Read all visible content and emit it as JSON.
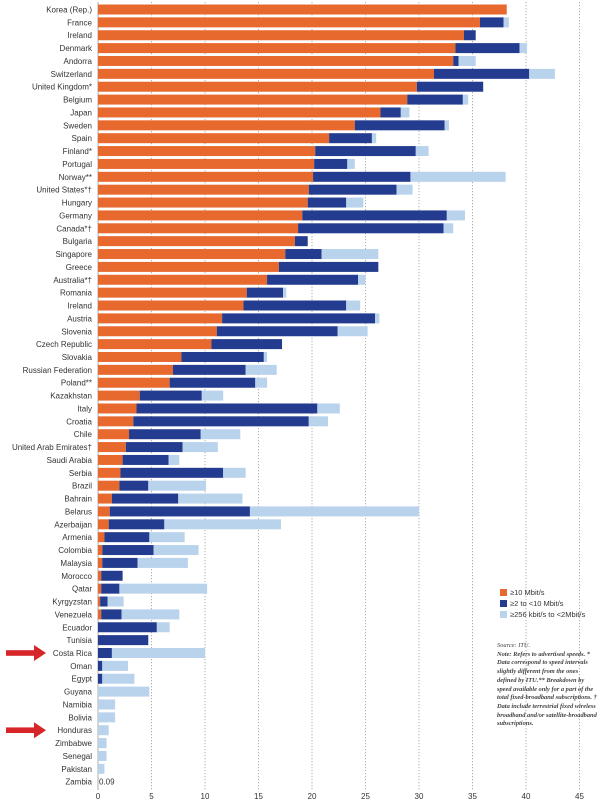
{
  "colors": {
    "high": "#e8692e",
    "mid": "#243c8f",
    "low": "#b9d3ec",
    "grid": "#9a9a9a",
    "arrow": "#d6262a"
  },
  "legend": {
    "items": [
      {
        "label": "≥10 Mbit/s",
        "color": "#e8692e"
      },
      {
        "label": "≥2 to <10 Mbit/s",
        "color": "#243c8f"
      },
      {
        "label": "≥256 kbit/s to <2Mbit/s",
        "color": "#b9d3ec"
      }
    ]
  },
  "note": {
    "source": "Source: ITU.",
    "text": "Note: Refers to advertised speeds. * Data correspond to speed intervals slightly different from the ones defined by ITU.** Breakdown by speed available only for a part of the total fixed-broadband subscriptions. † Data include terrestrial fixed wireless broadband and/or satellite-broadband subscriptions."
  },
  "chart_data": {
    "type": "bar",
    "orientation": "horizontal",
    "stacked": true,
    "xlim": [
      0,
      45
    ],
    "x_ticks": [
      "0",
      "5",
      "10",
      "15",
      "20",
      "25",
      "30",
      "35",
      "40",
      "45"
    ],
    "grid": "vertical dotted",
    "legend_position": "lower-right",
    "annotations": [
      {
        "text": "0.09",
        "category": "Zambia"
      }
    ],
    "highlighted_categories": [
      "Costa Rica",
      "Honduras"
    ],
    "categories": [
      "Korea (Rep.)",
      "France",
      "Ireland",
      "Denmark",
      "Andorra",
      "Switzerland",
      "United Kingdom*",
      "Belgium",
      "Japan",
      "Sweden",
      "Spain",
      "Finland*",
      "Portugal",
      "Norway**",
      "United States*†",
      "Hungary",
      "Germany",
      "Canada*†",
      "Bulgaria",
      "Singapore",
      "Greece",
      "Australia*†",
      "Romania",
      "Ireland",
      "Austria",
      "Slovenia",
      "Czech Republic",
      "Slovakia",
      "Russian Federation",
      "Poland**",
      "Kazakhstan",
      "Italy",
      "Croatia",
      "Chile",
      "United Arab Emirates†",
      "Saudi Arabia",
      "Serbia",
      "Brazil",
      "Bahrain",
      "Belarus",
      "Azerbaijan",
      "Armenia",
      "Colombia",
      "Malaysia",
      "Morocco",
      "Qatar",
      "Kyrgyzstan",
      "Venezuela",
      "Ecuador",
      "Tunisia",
      "Costa Rica",
      "Oman",
      "Egypt",
      "Guyana",
      "Namibia",
      "Bolivia",
      "Honduras",
      "Zimbabwe",
      "Senegal",
      "Pakistan",
      "Zambia"
    ],
    "series": [
      {
        "name": "≥10 Mbit/s",
        "values": [
          38.2,
          35.7,
          34.2,
          33.4,
          33.2,
          31.4,
          29.8,
          28.9,
          26.4,
          24.0,
          21.6,
          20.3,
          20.2,
          20.1,
          19.7,
          19.6,
          19.1,
          18.7,
          18.4,
          17.5,
          16.9,
          15.8,
          13.9,
          13.6,
          11.6,
          11.1,
          10.6,
          7.8,
          7.0,
          6.7,
          3.9,
          3.6,
          3.3,
          2.9,
          2.6,
          2.3,
          2.1,
          2.0,
          1.3,
          1.1,
          1.0,
          0.6,
          0.4,
          0.4,
          0.3,
          0.3,
          0.2,
          0.3,
          0.0,
          0.0,
          0.0,
          0.0,
          0.0,
          0.0,
          0.0,
          0.0,
          0.0,
          0.0,
          0.0,
          0.0,
          0.0
        ]
      },
      {
        "name": "≥2 to <10 Mbit/s",
        "values": [
          0.0,
          2.2,
          1.1,
          6.0,
          0.5,
          8.9,
          6.2,
          5.2,
          1.9,
          8.4,
          4.0,
          9.4,
          3.1,
          9.1,
          8.2,
          3.6,
          13.5,
          13.6,
          1.2,
          3.4,
          9.3,
          8.5,
          3.4,
          9.6,
          14.3,
          11.3,
          6.6,
          7.7,
          6.8,
          8.0,
          5.8,
          16.9,
          16.4,
          6.7,
          5.3,
          4.3,
          9.6,
          2.7,
          6.2,
          13.1,
          5.2,
          4.2,
          4.8,
          3.3,
          2.0,
          1.7,
          0.7,
          1.9,
          5.5,
          4.7,
          1.3,
          0.4,
          0.4,
          0.0,
          0.0,
          0.0,
          0.0,
          0.0,
          0.0,
          0.0,
          0.0
        ]
      },
      {
        "name": "≥256 kbit/s to <2Mbit/s",
        "values": [
          0.0,
          0.5,
          0.0,
          0.7,
          1.6,
          2.4,
          0.0,
          0.5,
          0.8,
          0.4,
          0.4,
          1.2,
          0.7,
          8.9,
          1.5,
          1.6,
          1.7,
          0.9,
          0.0,
          5.3,
          0.0,
          0.7,
          0.3,
          1.3,
          0.4,
          2.8,
          0.0,
          0.3,
          2.9,
          1.1,
          2.0,
          2.1,
          1.8,
          3.7,
          3.3,
          1.0,
          2.1,
          5.4,
          6.0,
          15.8,
          10.9,
          3.3,
          4.2,
          4.7,
          0.0,
          8.2,
          1.5,
          5.4,
          1.2,
          0.0,
          8.7,
          2.4,
          3.0,
          4.8,
          1.6,
          1.6,
          1.0,
          0.8,
          0.8,
          0.6,
          0.0
        ]
      }
    ]
  }
}
